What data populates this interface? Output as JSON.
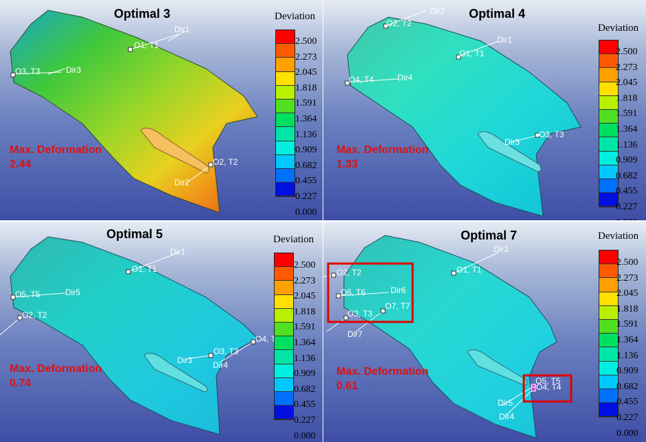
{
  "legend": {
    "title": "Deviation",
    "values": [
      "2.500",
      "2.273",
      "2.045",
      "1.818",
      "1.591",
      "1.364",
      "1.136",
      "0.909",
      "0.682",
      "0.455",
      "0.227",
      "0.000"
    ],
    "colors": [
      "#ff0000",
      "#ff5a00",
      "#ffa000",
      "#ffe000",
      "#b8f000",
      "#50e020",
      "#00e060",
      "#00e6a8",
      "#00f0e0",
      "#00c8ff",
      "#0070ff",
      "#0010e0"
    ]
  },
  "panels": [
    {
      "title": "Optimal 3",
      "max_label": "Max. Deformation",
      "max_value": "2.44",
      "callouts": [
        "O1, T1",
        "Dir1",
        "O3, T3",
        "Dir3",
        "O2, T2",
        "Dir2"
      ]
    },
    {
      "title": "Optimal 4",
      "max_label": "Max. Deformation",
      "max_value": "1.33",
      "callouts": [
        "O2, T2",
        "Dir2",
        "O1, T1",
        "Dir1",
        "O4, T4",
        "Dir4",
        "O3, T3",
        "Dir3"
      ]
    },
    {
      "title": "Optimal 5",
      "max_label": "Max. Deformation",
      "max_value": "0.74",
      "callouts": [
        "O1, T1",
        "Dir1",
        "O5, T5",
        "Dir5",
        "O2, T2",
        "O3, T3",
        "Dir3",
        "O4, T4",
        "Dir4"
      ]
    },
    {
      "title": "Optimal 7",
      "max_label": "Max. Deformation",
      "max_value": "0.61",
      "callouts": [
        "O1, T1",
        "Dir1",
        "O2, T2",
        "O6, T6",
        "Dir6",
        "O3, T3",
        "O7, T7",
        "Dir7",
        "O5, T5",
        "O4, T4",
        "Dir5",
        "Dir4"
      ]
    }
  ]
}
